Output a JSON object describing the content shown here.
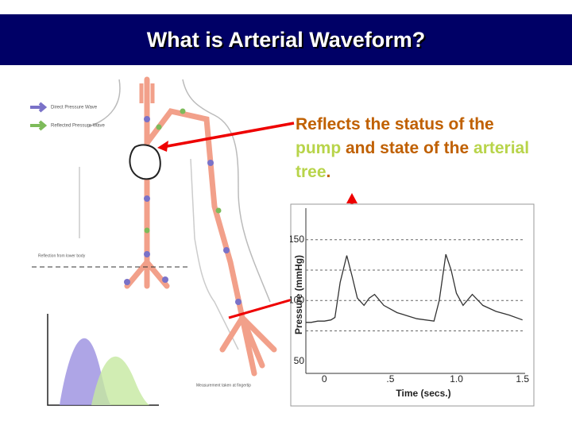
{
  "title": "What is Arterial Waveform?",
  "text": {
    "parts": [
      "Reflects the status of the ",
      "pump",
      " and state of the ",
      "arterial tree",
      "."
    ]
  },
  "figure": {
    "legend": [
      "Direct Pressure Wave",
      "Reflected Pressure Wave"
    ],
    "labels": [
      "Reflection from lower body",
      "Measurement taken at fingertip"
    ]
  },
  "chart_data": {
    "type": "line",
    "xlabel": "Time (secs.)",
    "ylabel": "Pressure (mmHg)",
    "x": [
      -0.14,
      -0.1,
      -0.05,
      0.0,
      0.05,
      0.08,
      0.12,
      0.17,
      0.21,
      0.25,
      0.3,
      0.34,
      0.38,
      0.45,
      0.55,
      0.7,
      0.83,
      0.87,
      0.92,
      0.96,
      1.0,
      1.05,
      1.12,
      1.2,
      1.3,
      1.4,
      1.5
    ],
    "values": [
      82,
      82,
      83,
      83,
      84,
      86,
      115,
      137,
      120,
      102,
      96,
      102,
      105,
      96,
      90,
      85,
      83,
      100,
      138,
      125,
      106,
      96,
      105,
      96,
      91,
      88,
      84
    ],
    "color": "#333333",
    "xlim": [
      -0.14,
      1.52
    ],
    "ylim": [
      40,
      176
    ],
    "xticks": [
      0,
      {
        "value": 0.5,
        "label": ".5"
      },
      {
        "value": 1.0,
        "label": "1.0"
      },
      1.5
    ],
    "yticks": [
      50,
      100,
      150
    ],
    "ygrid": [
      75,
      100,
      125,
      150
    ]
  }
}
